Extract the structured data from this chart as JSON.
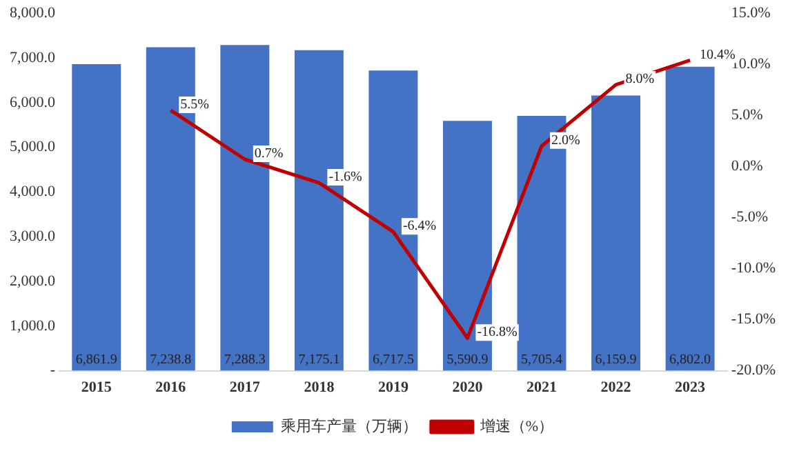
{
  "chart_data": {
    "type": "bar",
    "categories": [
      "2015",
      "2016",
      "2017",
      "2018",
      "2019",
      "2020",
      "2021",
      "2022",
      "2023"
    ],
    "series": [
      {
        "name": "乘用车产量（万辆）",
        "color": "#4472c4",
        "values": [
          6861.9,
          7238.8,
          7288.3,
          7175.1,
          6717.5,
          5590.9,
          5705.4,
          6159.9,
          6802.0
        ],
        "value_labels": [
          "6,861.9",
          "7,238.8",
          "7,288.3",
          "7,175.1",
          "6,717.5",
          "5,590.9",
          "5,705.4",
          "6,159.9",
          "6,802.0"
        ]
      },
      {
        "name": "增速（%）",
        "type": "line",
        "axis": "y2",
        "color": "#c00000",
        "values": [
          null,
          5.5,
          0.7,
          -1.6,
          -6.4,
          -16.8,
          2.0,
          8.0,
          10.4
        ],
        "value_labels": [
          null,
          "5.5%",
          "0.7%",
          "-1.6%",
          "-6.4%",
          "-16.8%",
          "2.0%",
          "8.0%",
          "10.4%"
        ]
      }
    ],
    "ylim": [
      0,
      8000
    ],
    "yticks": [
      {
        "value": 0,
        "label": "-"
      },
      {
        "value": 1000,
        "label": "1,000.0"
      },
      {
        "value": 2000,
        "label": "2,000.0"
      },
      {
        "value": 3000,
        "label": "3,000.0"
      },
      {
        "value": 4000,
        "label": "4,000.0"
      },
      {
        "value": 5000,
        "label": "5,000.0"
      },
      {
        "value": 6000,
        "label": "6,000.0"
      },
      {
        "value": 7000,
        "label": "7,000.0"
      },
      {
        "value": 8000,
        "label": "8,000.0"
      }
    ],
    "y2lim": [
      -20,
      15
    ],
    "y2ticks": [
      {
        "value": -20,
        "label": "-20.0%"
      },
      {
        "value": -15,
        "label": "-15.0%"
      },
      {
        "value": -10,
        "label": "-10.0%"
      },
      {
        "value": -5,
        "label": "-5.0%"
      },
      {
        "value": 0,
        "label": "0.0%"
      },
      {
        "value": 5,
        "label": "5.0%"
      },
      {
        "value": 10,
        "label": "10.0%"
      },
      {
        "value": 15,
        "label": "15.0%"
      }
    ],
    "legend": "bottom",
    "grid": false
  }
}
